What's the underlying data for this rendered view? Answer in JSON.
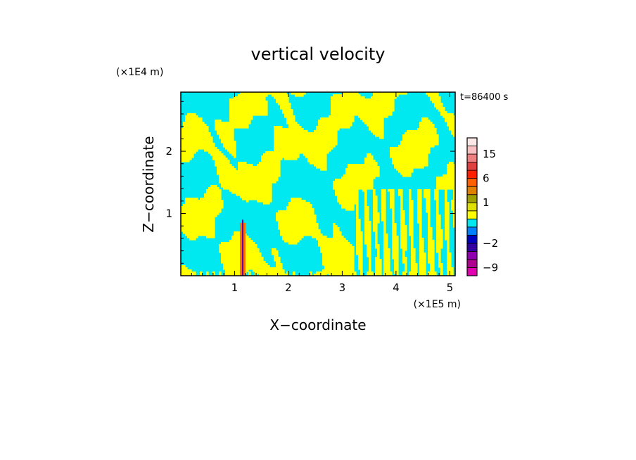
{
  "chart_data": {
    "type": "heatmap",
    "title": "vertical velocity",
    "xlabel": "X−coordinate",
    "ylabel": "Z−coordinate",
    "x_unit": "(×1E5 m)",
    "y_unit": "(×1E4 m)",
    "time_label": "t=86400 s",
    "xlim": [
      0,
      5.1
    ],
    "ylim": [
      0,
      2.95
    ],
    "x_ticks": [
      1,
      2,
      3,
      4,
      5
    ],
    "y_ticks": [
      1,
      2
    ],
    "grid": false,
    "colors": {
      "positive": "#ffff00",
      "negative": "#00e8f0",
      "updraft_core": "#ff7000",
      "downdraft_core": "#6000a0"
    },
    "colorbar": {
      "levels": [
        -12,
        -9,
        -6,
        -4,
        -2,
        -1,
        -0.5,
        0,
        0.5,
        1,
        2,
        4,
        6,
        9,
        12,
        15,
        18,
        24
      ],
      "colors": [
        "#e000b0",
        "#b00090",
        "#9000b0",
        "#3000a0",
        "#0000c0",
        "#0080ff",
        "#00e8f0",
        "#ffff00",
        "#e0e000",
        "#a0a000",
        "#e08000",
        "#ff6000",
        "#ff2000",
        "#e04040",
        "#f08080",
        "#f8c0c0",
        "#fde8e8"
      ],
      "labels": [
        {
          "value": 15,
          "text": "15"
        },
        {
          "value": 6,
          "text": "6"
        },
        {
          "value": 1,
          "text": "1"
        },
        {
          "value": -2,
          "text": "−2"
        },
        {
          "value": -9,
          "text": "−9"
        }
      ]
    }
  }
}
